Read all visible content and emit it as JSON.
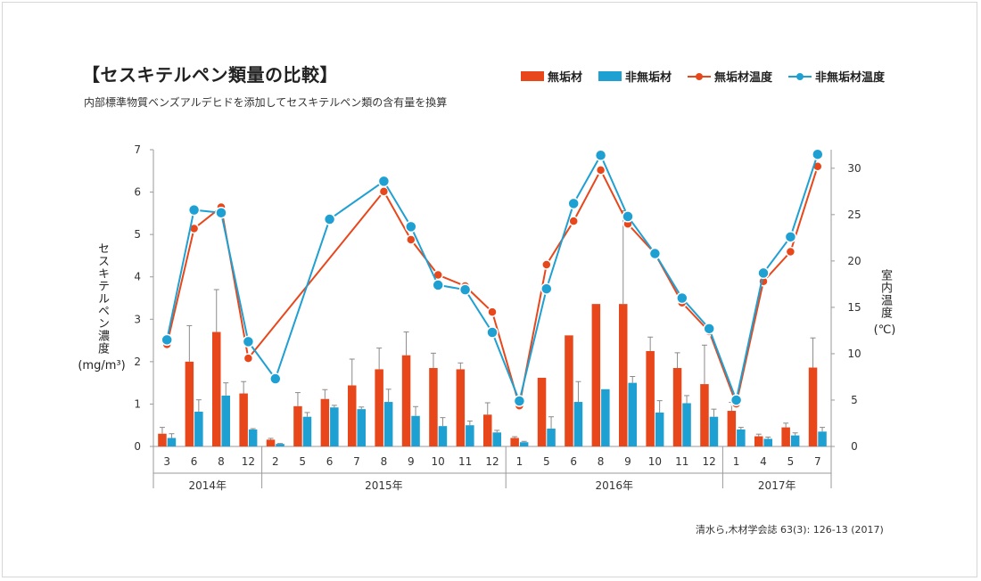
{
  "title": "【セスキテルペン類量の比較】",
  "subtitle": "内部標準物質ベンズアルデヒドを添加してセスキテルペン類の含有量を換算",
  "source": "清水ら,木材学会誌 63(3): 126-13 (2017)",
  "legend": [
    {
      "label": "無垢材",
      "kind": "bar",
      "color": "#e8471b"
    },
    {
      "label": "非無垢材",
      "kind": "bar",
      "color": "#1fa0d2"
    },
    {
      "label": "無垢材温度",
      "kind": "line",
      "color": "#e8471b"
    },
    {
      "label": "非無垢材温度",
      "kind": "line",
      "color": "#1fa0d2"
    }
  ],
  "y_left_label_main": "セスキテルペン濃度",
  "y_left_label_unit": "(mg/m³)",
  "y_right_label_main": "室内温度",
  "y_right_label_unit": "(℃)",
  "chart_data": {
    "type": "bar",
    "categories": [
      "3",
      "6",
      "8",
      "12",
      "2",
      "5",
      "6",
      "7",
      "8",
      "9",
      "10",
      "11",
      "12",
      "1",
      "5",
      "6",
      "8",
      "9",
      "10",
      "11",
      "12",
      "1",
      "4",
      "5",
      "7"
    ],
    "year_groups": [
      {
        "label": "2014年",
        "start": 0,
        "count": 4
      },
      {
        "label": "2015年",
        "start": 4,
        "count": 9
      },
      {
        "label": "2016年",
        "start": 13,
        "count": 8
      },
      {
        "label": "2017年",
        "start": 21,
        "count": 4
      }
    ],
    "y_left": {
      "lim": [
        0,
        7
      ],
      "ticks": [
        0,
        1,
        2,
        3,
        4,
        5,
        6,
        7
      ]
    },
    "y_right": {
      "lim": [
        0,
        32
      ],
      "ticks": [
        0,
        5,
        10,
        15,
        20,
        25,
        30
      ]
    },
    "series": [
      {
        "name": "無垢材",
        "kind": "bar",
        "axis": "left",
        "color": "#e8471b",
        "values": [
          0.3,
          2.0,
          2.7,
          1.25,
          0.16,
          0.95,
          1.12,
          1.44,
          1.82,
          2.15,
          1.85,
          1.82,
          0.75,
          0.2,
          1.62,
          2.62,
          3.36,
          3.36,
          2.25,
          1.85,
          1.47,
          0.84,
          0.24,
          0.45,
          1.86
        ],
        "errors": [
          0.15,
          0.85,
          1.0,
          0.28,
          0.03,
          0.32,
          0.22,
          0.62,
          0.5,
          0.55,
          0.35,
          0.15,
          0.28,
          0.03,
          0.0,
          0.0,
          0.0,
          2.2,
          0.33,
          0.36,
          0.92,
          0.2,
          0.05,
          0.1,
          0.7
        ]
      },
      {
        "name": "非無垢材",
        "kind": "bar",
        "axis": "left",
        "color": "#1fa0d2",
        "values": [
          0.2,
          0.82,
          1.2,
          0.4,
          0.06,
          0.7,
          0.92,
          0.88,
          1.05,
          0.72,
          0.48,
          0.5,
          0.33,
          0.1,
          0.42,
          1.05,
          1.35,
          1.5,
          0.8,
          1.02,
          0.7,
          0.4,
          0.18,
          0.26,
          0.35
        ],
        "errors": [
          0.1,
          0.28,
          0.3,
          0.02,
          0.01,
          0.1,
          0.05,
          0.05,
          0.3,
          0.22,
          0.2,
          0.1,
          0.05,
          0.02,
          0.28,
          0.48,
          0.0,
          0.15,
          0.28,
          0.18,
          0.18,
          0.05,
          0.04,
          0.06,
          0.1
        ]
      },
      {
        "name": "無垢材温度",
        "kind": "line",
        "axis": "right",
        "color": "#e8471b",
        "values": [
          11.0,
          23.5,
          25.8,
          9.5,
          null,
          null,
          null,
          null,
          27.5,
          22.3,
          18.5,
          17.3,
          14.5,
          4.4,
          19.6,
          24.3,
          29.8,
          24.0,
          20.8,
          15.5,
          12.4,
          4.6,
          17.8,
          21.0,
          30.2
        ]
      },
      {
        "name": "非無垢材温度",
        "kind": "line",
        "axis": "right",
        "color": "#1fa0d2",
        "values": [
          11.5,
          25.5,
          25.2,
          11.3,
          7.3,
          null,
          24.5,
          null,
          28.6,
          23.7,
          17.4,
          16.9,
          12.3,
          4.9,
          17.0,
          26.2,
          31.4,
          24.8,
          20.8,
          16.0,
          12.7,
          5.0,
          18.7,
          22.6,
          31.5
        ]
      }
    ]
  }
}
